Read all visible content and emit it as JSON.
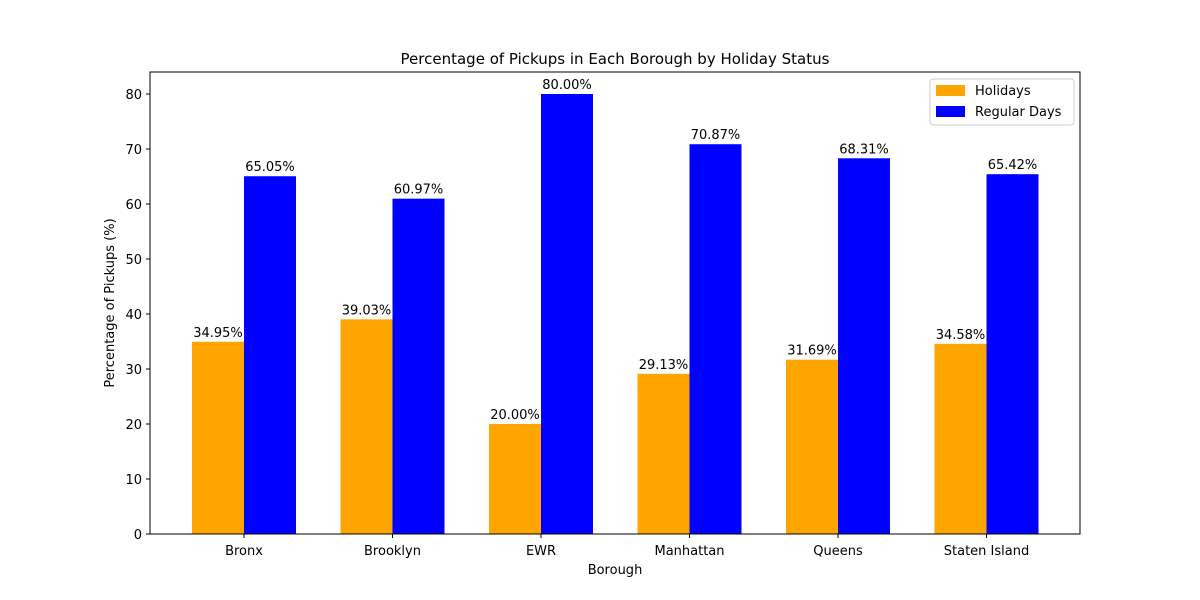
{
  "chart_data": {
    "type": "bar",
    "title": "Percentage of Pickups in Each Borough by Holiday Status",
    "xlabel": "Borough",
    "ylabel": "Percentage of Pickups (%)",
    "ylim": [
      0,
      84
    ],
    "yticks": [
      0,
      10,
      20,
      30,
      40,
      50,
      60,
      70,
      80
    ],
    "grid": false,
    "legend_position": "top-right",
    "categories": [
      "Bronx",
      "Brooklyn",
      "EWR",
      "Manhattan",
      "Queens",
      "Staten Island"
    ],
    "series": [
      {
        "name": "Holidays",
        "color": "#ffa500",
        "values": [
          34.95,
          39.03,
          20.0,
          29.13,
          31.69,
          34.58
        ],
        "labels": [
          "34.95%",
          "39.03%",
          "20.00%",
          "29.13%",
          "31.69%",
          "34.58%"
        ]
      },
      {
        "name": "Regular Days",
        "color": "#0000ff",
        "values": [
          65.05,
          60.97,
          80.0,
          70.87,
          68.31,
          65.42
        ],
        "labels": [
          "65.05%",
          "60.97%",
          "80.00%",
          "70.87%",
          "68.31%",
          "65.42%"
        ]
      }
    ]
  }
}
